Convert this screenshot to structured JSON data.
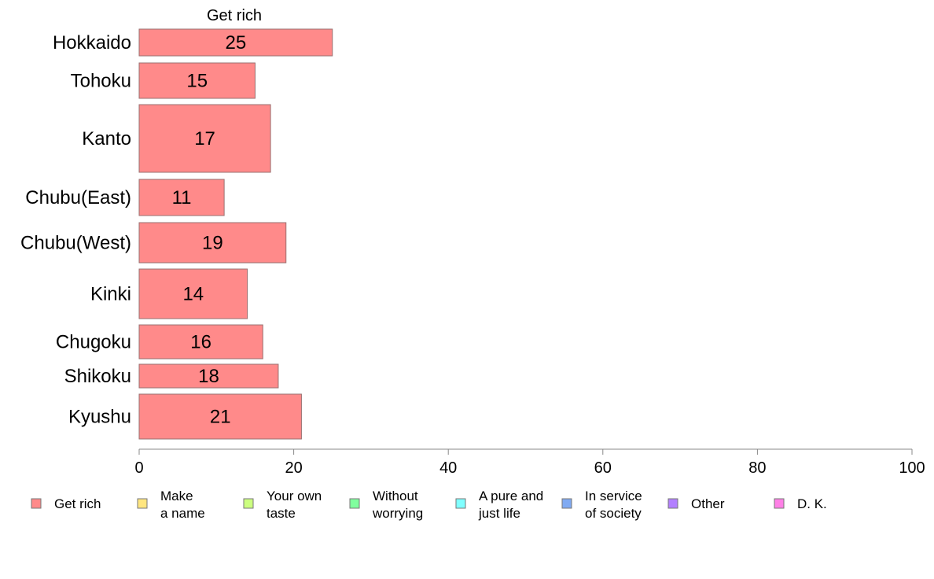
{
  "chart_data": {
    "type": "bar",
    "orientation": "horizontal",
    "title": "Get rich",
    "categories": [
      "Hokkaido",
      "Tohoku",
      "Kanto",
      "Chubu(East)",
      "Chubu(West)",
      "Kinki",
      "Chugoku",
      "Shikoku",
      "Kyushu"
    ],
    "series": [
      {
        "name": "Get rich",
        "values": [
          25,
          15,
          17,
          11,
          19,
          14,
          16,
          18,
          21
        ]
      }
    ],
    "xlim": [
      0,
      100
    ],
    "xticks": [
      0,
      20,
      40,
      60,
      80,
      100
    ],
    "grid": false,
    "legend_position": "bottom",
    "legend": [
      {
        "label": [
          "Get rich"
        ],
        "color": "#ff8a8a"
      },
      {
        "label": [
          "Make",
          "a name"
        ],
        "color": "#ffe680"
      },
      {
        "label": [
          "Your own",
          "taste"
        ],
        "color": "#ccff80"
      },
      {
        "label": [
          "Without",
          "worrying"
        ],
        "color": "#80ff9e"
      },
      {
        "label": [
          "A pure and",
          "just life"
        ],
        "color": "#80ffff"
      },
      {
        "label": [
          "In service",
          "of society"
        ],
        "color": "#80aaf2"
      },
      {
        "label": [
          "Other"
        ],
        "color": "#b380ff"
      },
      {
        "label": [
          "D. K."
        ],
        "color": "#ff80e6"
      }
    ],
    "bar_color": "#ff8a8a"
  }
}
